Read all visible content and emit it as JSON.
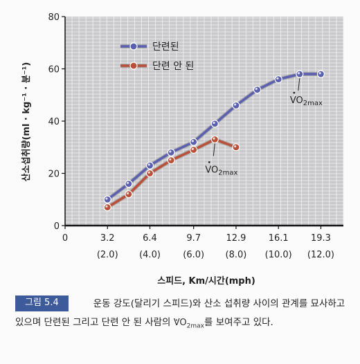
{
  "chart_data": {
    "type": "line",
    "x": [
      "3.2",
      "4.8",
      "6.4",
      "8.0",
      "9.7",
      "11.3",
      "12.9",
      "14.5",
      "16.1",
      "17.7",
      "19.3"
    ],
    "x_numeric": [
      3.2,
      4.8,
      6.4,
      8.0,
      9.7,
      11.3,
      12.9,
      14.5,
      16.1,
      17.7,
      19.3
    ],
    "xticks": [
      {
        "value": 0,
        "label": "0",
        "sub": ""
      },
      {
        "value": 3.2,
        "label": "3.2",
        "sub": "(2.0)"
      },
      {
        "value": 6.4,
        "label": "6.4",
        "sub": "(4.0)"
      },
      {
        "value": 9.7,
        "label": "9.7",
        "sub": "(6.0)"
      },
      {
        "value": 12.9,
        "label": "12.9",
        "sub": "(8.0)"
      },
      {
        "value": 16.1,
        "label": "16.1",
        "sub": "(10.0)"
      },
      {
        "value": 19.3,
        "label": "19.3",
        "sub": "(12.0)"
      }
    ],
    "yticks": [
      0,
      20,
      40,
      60,
      80
    ],
    "xlim": [
      0,
      21
    ],
    "ylim": [
      0,
      80
    ],
    "xlabel": "스피드, Km/시간(mph)",
    "ylabel": "산소섭취량(ml · kg⁻¹ · 분⁻¹)",
    "grid": true,
    "legend_position": "top-left",
    "series": [
      {
        "name": "단련된",
        "color": "#5a5fb0",
        "x": [
          3.2,
          4.8,
          6.4,
          8.0,
          9.7,
          11.3,
          12.9,
          14.5,
          16.1,
          17.7,
          19.3
        ],
        "values": [
          10,
          16,
          23,
          28,
          32,
          39,
          46,
          52,
          56,
          58,
          58
        ]
      },
      {
        "name": "단련 안 된",
        "color": "#b8503a",
        "x": [
          3.2,
          4.8,
          6.4,
          8.0,
          9.7,
          11.3,
          12.9
        ],
        "values": [
          7,
          12,
          20,
          25,
          29,
          33,
          30
        ]
      }
    ],
    "annotations": [
      {
        "text": "VO",
        "sub": "2max",
        "series": 0,
        "point_index": 9
      },
      {
        "text": "VO",
        "sub": "2max",
        "series": 1,
        "point_index": 5
      }
    ]
  },
  "caption": {
    "label": "그림 5.4",
    "text_before": "운동 강도(달리기 스피드)와 산소 섭취량 사이의 관계를 묘사하고 있으며 단련된 그리고 단련 안 된 사람의 ",
    "vo2": "VO",
    "vo2_sub": "2max",
    "text_after": "를 보여주고 있다."
  }
}
